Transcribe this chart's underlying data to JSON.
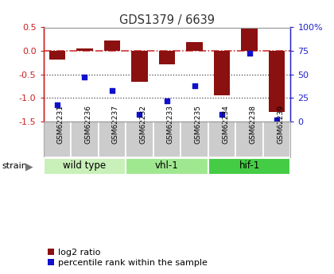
{
  "title": "GDS1379 / 6639",
  "samples": [
    "GSM62231",
    "GSM62236",
    "GSM62237",
    "GSM62232",
    "GSM62233",
    "GSM62235",
    "GSM62234",
    "GSM62238",
    "GSM62239"
  ],
  "log2_ratio": [
    -0.18,
    0.05,
    0.22,
    -0.65,
    -0.28,
    0.18,
    -0.95,
    0.48,
    -1.3
  ],
  "percentile_rank": [
    18,
    47,
    33,
    8,
    22,
    38,
    8,
    73,
    2
  ],
  "groups": [
    {
      "label": "wild type",
      "start": 0,
      "end": 3,
      "color": "#c8f0b8"
    },
    {
      "label": "vhl-1",
      "start": 3,
      "end": 6,
      "color": "#a0e890"
    },
    {
      "label": "hif-1",
      "start": 6,
      "end": 9,
      "color": "#44cc44"
    }
  ],
  "ylim_left": [
    -1.5,
    0.5
  ],
  "ylim_right": [
    0,
    100
  ],
  "bar_color": "#8b1010",
  "dot_color": "#1010cc",
  "hline_color": "#cc2020",
  "dotline_color": "#444444",
  "bg_color": "#ffffff",
  "label_bg": "#cccccc",
  "legend_bar": "log2 ratio",
  "legend_dot": "percentile rank within the sample",
  "title_color": "#333333",
  "right_axis_color": "#2222cc",
  "left_axis_color": "#cc2020",
  "left_ticks": [
    0.5,
    0.0,
    -0.5,
    -1.0,
    -1.5
  ],
  "right_ticks": [
    100,
    75,
    50,
    25,
    0
  ]
}
